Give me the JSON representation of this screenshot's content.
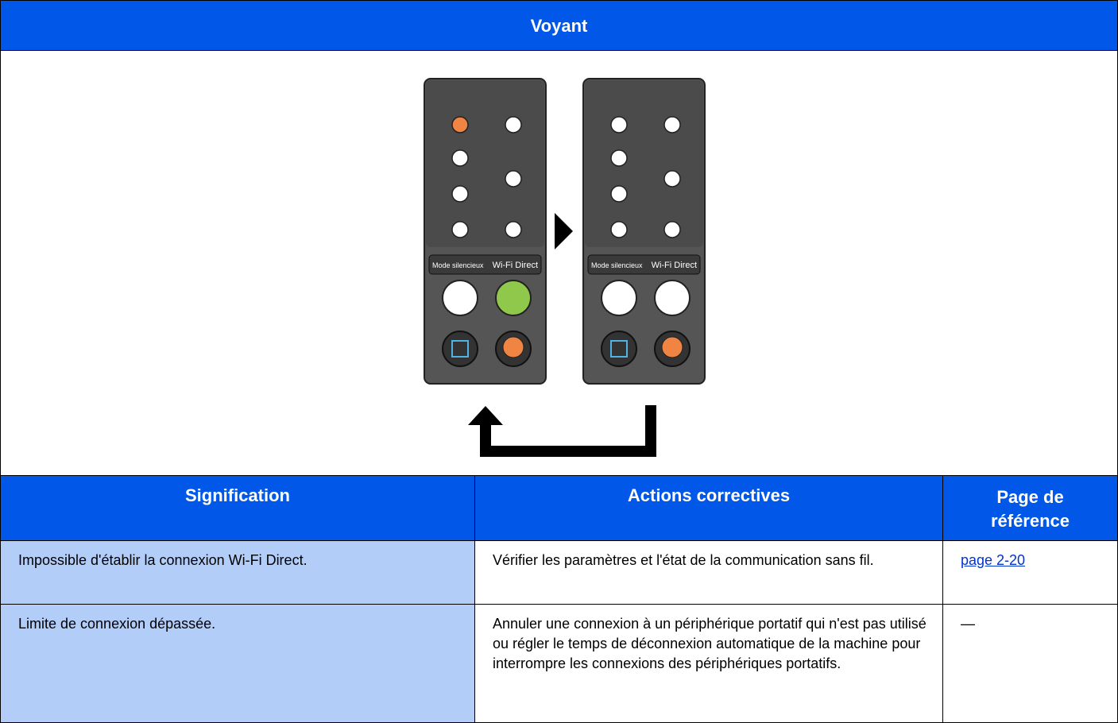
{
  "header": {
    "title": "Voyant"
  },
  "panel": {
    "labels": [
      "Mode silencieux",
      "Wi-Fi Direct"
    ]
  },
  "table": {
    "columns": [
      "Signification",
      "Actions correctives",
      "Page de référence"
    ],
    "rows": [
      [
        "Impossible d'établir la connexion Wi-Fi Direct.",
        "Vérifier les paramètres et l'état de la communication sans fil.",
        "page 2-20"
      ],
      [
        "Limite de connexion dépassée.",
        "Annuler une connexion à un périphérique portatif qui n'est pas utilisé ou régler le temps de déconnexion automatique de la machine pour interrompre les connexions des périphériques portatifs.",
        "—"
      ]
    ]
  }
}
